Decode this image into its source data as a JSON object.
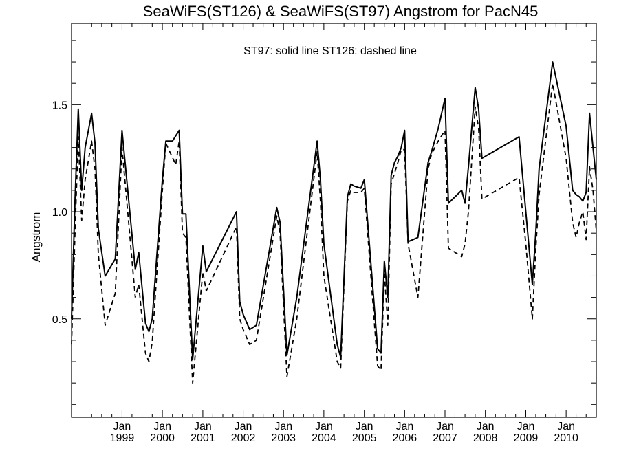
{
  "chart_data": {
    "type": "line",
    "title": "SeaWiFS(ST126) & SeaWiFS(ST97)  Angstrom for PacN45",
    "ylabel": "Angstrom",
    "xlabel": "",
    "annotation": "ST97: solid line   ST126: dashed line",
    "xlim": [
      "1997-10-01",
      "2010-10-01"
    ],
    "ylim": [
      0.04,
      1.88
    ],
    "y_ticks": [
      {
        "value": 0.5,
        "label": "0.5"
      },
      {
        "value": 1.0,
        "label": "1.0"
      },
      {
        "value": 1.5,
        "label": "1.5"
      }
    ],
    "x_ticks": [
      {
        "date": "1999-01-01",
        "month": "Jan",
        "year": "1999"
      },
      {
        "date": "2000-01-01",
        "month": "Jan",
        "year": "2000"
      },
      {
        "date": "2001-01-01",
        "month": "Jan",
        "year": "2001"
      },
      {
        "date": "2002-01-01",
        "month": "Jan",
        "year": "2002"
      },
      {
        "date": "2003-01-01",
        "month": "Jan",
        "year": "2003"
      },
      {
        "date": "2004-01-01",
        "month": "Jan",
        "year": "2004"
      },
      {
        "date": "2005-01-01",
        "month": "Jan",
        "year": "2005"
      },
      {
        "date": "2006-01-01",
        "month": "Jan",
        "year": "2006"
      },
      {
        "date": "2007-01-01",
        "month": "Jan",
        "year": "2007"
      },
      {
        "date": "2008-01-01",
        "month": "Jan",
        "year": "2008"
      },
      {
        "date": "2009-01-01",
        "month": "Jan",
        "year": "2009"
      },
      {
        "date": "2010-01-01",
        "month": "Jan",
        "year": "2010"
      }
    ],
    "series": [
      {
        "name": "ST97",
        "style": "solid",
        "points": [
          [
            "1997-10-01",
            0.5
          ],
          [
            "1997-11-01",
            1.05
          ],
          [
            "1997-12-01",
            1.48
          ],
          [
            "1998-01-01",
            1.1
          ],
          [
            "1998-02-01",
            1.3
          ],
          [
            "1998-04-01",
            1.46
          ],
          [
            "1998-05-01",
            1.32
          ],
          [
            "1998-06-01",
            0.92
          ],
          [
            "1998-08-01",
            0.7
          ],
          [
            "1998-11-01",
            0.78
          ],
          [
            "1999-01-01",
            1.38
          ],
          [
            "1999-05-01",
            0.73
          ],
          [
            "1999-06-01",
            0.81
          ],
          [
            "1999-08-01",
            0.48
          ],
          [
            "1999-09-01",
            0.44
          ],
          [
            "1999-10-01",
            0.5
          ],
          [
            "2000-01-01",
            1.15
          ],
          [
            "2000-02-01",
            1.33
          ],
          [
            "2000-04-01",
            1.33
          ],
          [
            "2000-06-01",
            1.38
          ],
          [
            "2000-07-01",
            0.99
          ],
          [
            "2000-08-01",
            0.99
          ],
          [
            "2000-10-01",
            0.31
          ],
          [
            "2001-01-01",
            0.84
          ],
          [
            "2001-02-01",
            0.72
          ],
          [
            "2001-11-01",
            1.0
          ],
          [
            "2001-12-01",
            0.58
          ],
          [
            "2002-01-01",
            0.52
          ],
          [
            "2002-03-01",
            0.45
          ],
          [
            "2002-05-01",
            0.47
          ],
          [
            "2002-11-01",
            1.02
          ],
          [
            "2002-12-01",
            0.95
          ],
          [
            "2003-02-01",
            0.33
          ],
          [
            "2003-05-01",
            0.6
          ],
          [
            "2003-11-01",
            1.33
          ],
          [
            "2003-12-01",
            1.15
          ],
          [
            "2004-01-01",
            0.85
          ],
          [
            "2004-05-01",
            0.38
          ],
          [
            "2004-06-01",
            0.32
          ],
          [
            "2004-08-01",
            1.07
          ],
          [
            "2004-09-01",
            1.13
          ],
          [
            "2004-10-01",
            1.12
          ],
          [
            "2004-12-01",
            1.11
          ],
          [
            "2005-01-01",
            1.15
          ],
          [
            "2005-05-01",
            0.36
          ],
          [
            "2005-06-01",
            0.34
          ],
          [
            "2005-07-01",
            0.77
          ],
          [
            "2005-08-01",
            0.6
          ],
          [
            "2005-09-01",
            1.17
          ],
          [
            "2005-10-01",
            1.23
          ],
          [
            "2005-11-01",
            1.26
          ],
          [
            "2005-12-01",
            1.3
          ],
          [
            "2006-01-01",
            1.38
          ],
          [
            "2006-02-01",
            0.86
          ],
          [
            "2006-05-01",
            0.88
          ],
          [
            "2006-08-01",
            1.23
          ],
          [
            "2006-09-01",
            1.28
          ],
          [
            "2006-11-01",
            1.39
          ],
          [
            "2007-01-01",
            1.53
          ],
          [
            "2007-02-01",
            1.04
          ],
          [
            "2007-06-01",
            1.1
          ],
          [
            "2007-07-01",
            1.04
          ],
          [
            "2007-08-01",
            1.21
          ],
          [
            "2007-10-01",
            1.58
          ],
          [
            "2007-11-01",
            1.48
          ],
          [
            "2007-12-01",
            1.25
          ],
          [
            "2008-11-01",
            1.35
          ],
          [
            "2009-01-01",
            1.0
          ],
          [
            "2009-03-01",
            0.66
          ],
          [
            "2009-04-01",
            0.9
          ],
          [
            "2009-05-01",
            1.2
          ],
          [
            "2009-09-01",
            1.7
          ],
          [
            "2010-01-01",
            1.4
          ],
          [
            "2010-03-01",
            1.1
          ],
          [
            "2010-04-01",
            1.08
          ],
          [
            "2010-05-01",
            1.07
          ],
          [
            "2010-06-01",
            1.05
          ],
          [
            "2010-07-01",
            1.09
          ],
          [
            "2010-08-01",
            1.46
          ],
          [
            "2010-09-01",
            1.3
          ],
          [
            "2010-10-01",
            1.15
          ]
        ]
      },
      {
        "name": "ST126",
        "style": "dashed",
        "points": [
          [
            "1997-10-01",
            0.38
          ],
          [
            "1997-11-01",
            0.9
          ],
          [
            "1997-12-01",
            1.35
          ],
          [
            "1998-01-01",
            0.96
          ],
          [
            "1998-02-01",
            1.15
          ],
          [
            "1998-04-01",
            1.33
          ],
          [
            "1998-05-01",
            1.2
          ],
          [
            "1998-06-01",
            0.8
          ],
          [
            "1998-08-01",
            0.47
          ],
          [
            "1998-11-01",
            0.62
          ],
          [
            "1999-01-01",
            1.3
          ],
          [
            "1999-05-01",
            0.6
          ],
          [
            "1999-06-01",
            0.66
          ],
          [
            "1999-08-01",
            0.34
          ],
          [
            "1999-09-01",
            0.3
          ],
          [
            "1999-10-01",
            0.39
          ],
          [
            "2000-01-01",
            1.1
          ],
          [
            "2000-02-01",
            1.32
          ],
          [
            "2000-05-01",
            1.22
          ],
          [
            "2000-06-01",
            1.33
          ],
          [
            "2000-07-01",
            0.9
          ],
          [
            "2000-08-01",
            0.88
          ],
          [
            "2000-10-01",
            0.2
          ],
          [
            "2001-01-01",
            0.72
          ],
          [
            "2001-02-01",
            0.63
          ],
          [
            "2001-11-01",
            0.93
          ],
          [
            "2001-12-01",
            0.5
          ],
          [
            "2002-01-01",
            0.45
          ],
          [
            "2002-03-01",
            0.38
          ],
          [
            "2002-05-01",
            0.4
          ],
          [
            "2002-11-01",
            0.98
          ],
          [
            "2002-12-01",
            0.9
          ],
          [
            "2003-02-01",
            0.23
          ],
          [
            "2003-05-01",
            0.5
          ],
          [
            "2003-11-01",
            1.28
          ],
          [
            "2003-12-01",
            1.05
          ],
          [
            "2004-01-01",
            0.7
          ],
          [
            "2004-05-01",
            0.3
          ],
          [
            "2004-06-01",
            0.27
          ],
          [
            "2004-08-01",
            1.05
          ],
          [
            "2004-09-01",
            1.1
          ],
          [
            "2004-10-01",
            1.09
          ],
          [
            "2004-12-01",
            1.09
          ],
          [
            "2005-01-01",
            1.11
          ],
          [
            "2005-05-01",
            0.28
          ],
          [
            "2005-06-01",
            0.26
          ],
          [
            "2005-07-01",
            0.72
          ],
          [
            "2005-08-01",
            0.47
          ],
          [
            "2005-09-01",
            1.13
          ],
          [
            "2005-10-01",
            1.18
          ],
          [
            "2005-11-01",
            1.23
          ],
          [
            "2005-12-01",
            1.29
          ],
          [
            "2006-01-01",
            1.29
          ],
          [
            "2006-02-01",
            0.85
          ],
          [
            "2006-05-01",
            0.6
          ],
          [
            "2006-08-01",
            1.2
          ],
          [
            "2006-09-01",
            1.27
          ],
          [
            "2006-11-01",
            1.33
          ],
          [
            "2007-01-01",
            1.38
          ],
          [
            "2007-02-01",
            0.83
          ],
          [
            "2007-06-01",
            0.79
          ],
          [
            "2007-07-01",
            0.85
          ],
          [
            "2007-08-01",
            1.0
          ],
          [
            "2007-10-01",
            1.49
          ],
          [
            "2007-11-01",
            1.39
          ],
          [
            "2007-12-01",
            1.06
          ],
          [
            "2008-11-01",
            1.16
          ],
          [
            "2009-01-01",
            0.85
          ],
          [
            "2009-03-01",
            0.5
          ],
          [
            "2009-04-01",
            0.82
          ],
          [
            "2009-05-01",
            1.08
          ],
          [
            "2009-09-01",
            1.6
          ],
          [
            "2010-01-01",
            1.25
          ],
          [
            "2010-03-01",
            0.95
          ],
          [
            "2010-04-01",
            0.88
          ],
          [
            "2010-05-01",
            0.95
          ],
          [
            "2010-06-01",
            1.0
          ],
          [
            "2010-07-01",
            0.87
          ],
          [
            "2010-08-01",
            1.21
          ],
          [
            "2010-09-01",
            1.1
          ],
          [
            "2010-10-01",
            0.91
          ]
        ]
      }
    ]
  }
}
